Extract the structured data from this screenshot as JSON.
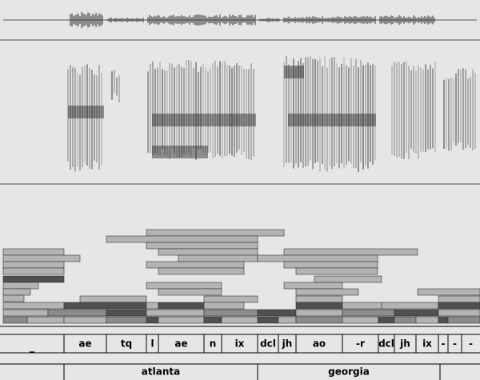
{
  "phones": [
    "_",
    "ae",
    "tq",
    "l",
    "ae",
    "n",
    "ix",
    "dcl",
    "jh",
    "ao",
    "-r",
    "dcl",
    "jh",
    "ix",
    "-",
    "-",
    "-"
  ],
  "words": [
    "atlanta",
    "georgia"
  ]
}
